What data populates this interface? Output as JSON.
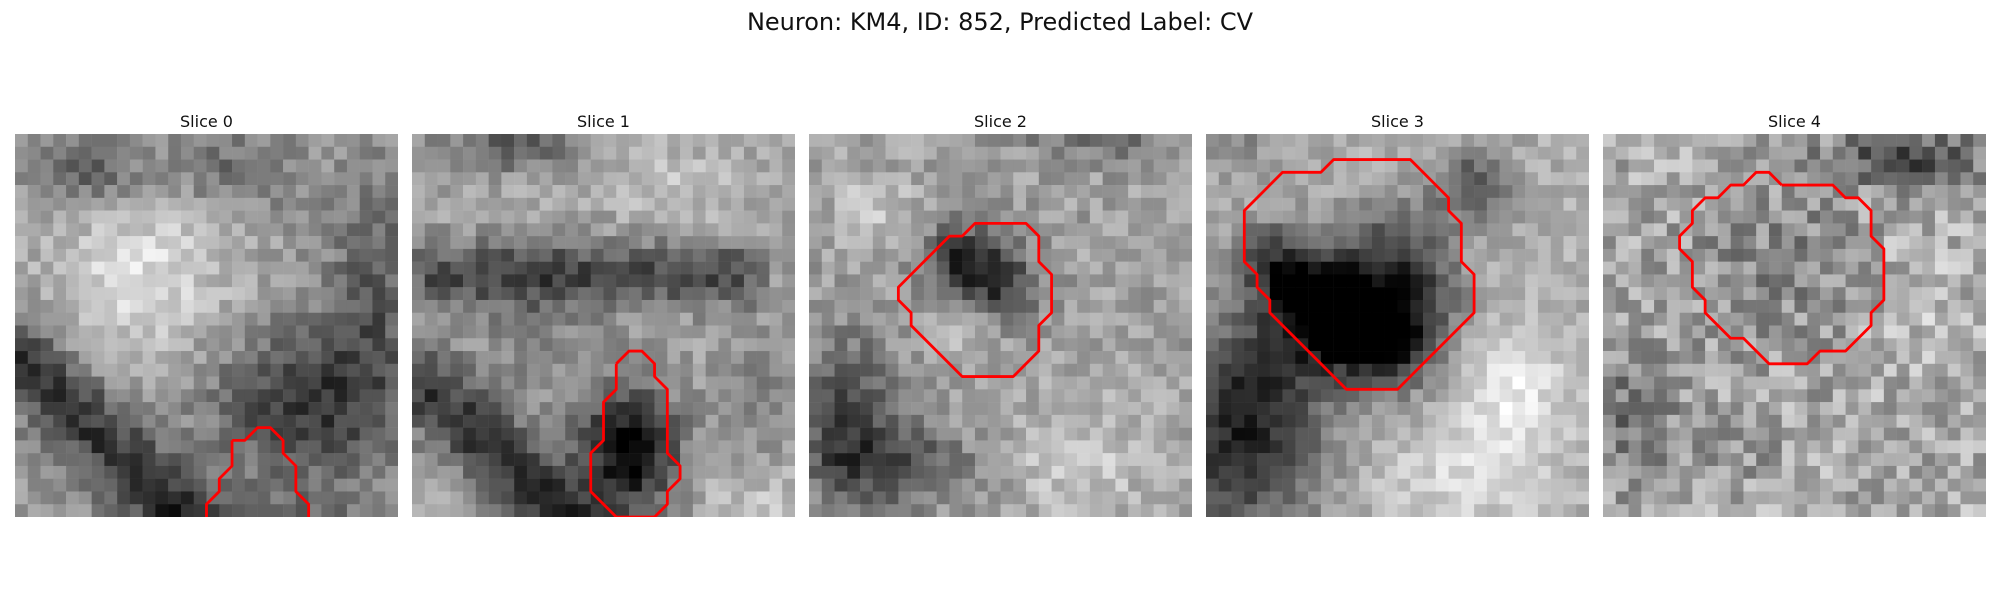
{
  "figure": {
    "title": "Neuron: KM4, ID: 852, Predicted Label: CV"
  },
  "panels": [
    {
      "title": "Slice 0",
      "contour": [
        [
          17,
          24
        ],
        [
          18,
          24
        ],
        [
          19,
          23
        ],
        [
          20,
          23
        ],
        [
          21,
          24
        ],
        [
          21,
          25
        ],
        [
          22,
          26
        ],
        [
          22,
          28
        ],
        [
          23,
          29
        ],
        [
          23,
          33
        ],
        [
          22,
          34
        ],
        [
          21,
          35
        ],
        [
          18,
          35
        ],
        [
          17,
          34
        ],
        [
          16,
          34
        ],
        [
          15,
          33
        ],
        [
          15,
          29
        ],
        [
          16,
          28
        ],
        [
          16,
          27
        ],
        [
          17,
          26
        ],
        [
          17,
          24
        ]
      ]
    },
    {
      "title": "Slice 1",
      "contour": [
        [
          16,
          18
        ],
        [
          17,
          17
        ],
        [
          18,
          17
        ],
        [
          19,
          18
        ],
        [
          19,
          19
        ],
        [
          20,
          20
        ],
        [
          20,
          25
        ],
        [
          21,
          26
        ],
        [
          21,
          27
        ],
        [
          20,
          28
        ],
        [
          20,
          29
        ],
        [
          19,
          30
        ],
        [
          16,
          30
        ],
        [
          15,
          29
        ],
        [
          14,
          28
        ],
        [
          14,
          25
        ],
        [
          15,
          24
        ],
        [
          15,
          21
        ],
        [
          16,
          20
        ],
        [
          16,
          18
        ]
      ]
    },
    {
      "title": "Slice 2",
      "contour": [
        [
          14,
          7
        ],
        [
          17,
          7
        ],
        [
          18,
          8
        ],
        [
          18,
          10
        ],
        [
          19,
          11
        ],
        [
          19,
          14
        ],
        [
          18,
          15
        ],
        [
          18,
          17
        ],
        [
          17,
          18
        ],
        [
          16,
          19
        ],
        [
          12,
          19
        ],
        [
          11,
          18
        ],
        [
          10,
          17
        ],
        [
          9,
          16
        ],
        [
          8,
          15
        ],
        [
          8,
          14
        ],
        [
          7,
          13
        ],
        [
          7,
          12
        ],
        [
          8,
          11
        ],
        [
          9,
          10
        ],
        [
          10,
          9
        ],
        [
          11,
          8
        ],
        [
          12,
          8
        ],
        [
          13,
          7
        ],
        [
          14,
          7
        ]
      ]
    },
    {
      "title": "Slice 3",
      "contour": [
        [
          11,
          2
        ],
        [
          16,
          2
        ],
        [
          17,
          3
        ],
        [
          18,
          4
        ],
        [
          19,
          5
        ],
        [
          19,
          6
        ],
        [
          20,
          7
        ],
        [
          20,
          10
        ],
        [
          21,
          11
        ],
        [
          21,
          14
        ],
        [
          20,
          15
        ],
        [
          19,
          16
        ],
        [
          18,
          17
        ],
        [
          17,
          18
        ],
        [
          16,
          19
        ],
        [
          15,
          20
        ],
        [
          11,
          20
        ],
        [
          10,
          19
        ],
        [
          9,
          18
        ],
        [
          8,
          17
        ],
        [
          7,
          16
        ],
        [
          6,
          15
        ],
        [
          5,
          14
        ],
        [
          5,
          13
        ],
        [
          4,
          12
        ],
        [
          4,
          11
        ],
        [
          3,
          10
        ],
        [
          3,
          6
        ],
        [
          4,
          5
        ],
        [
          5,
          4
        ],
        [
          6,
          3
        ],
        [
          9,
          3
        ],
        [
          10,
          2
        ],
        [
          11,
          2
        ]
      ]
    },
    {
      "title": "Slice 4",
      "contour": [
        [
          14,
          4
        ],
        [
          18,
          4
        ],
        [
          19,
          5
        ],
        [
          20,
          5
        ],
        [
          21,
          6
        ],
        [
          21,
          8
        ],
        [
          22,
          9
        ],
        [
          22,
          13
        ],
        [
          21,
          14
        ],
        [
          21,
          15
        ],
        [
          20,
          16
        ],
        [
          19,
          17
        ],
        [
          17,
          17
        ],
        [
          16,
          18
        ],
        [
          13,
          18
        ],
        [
          12,
          17
        ],
        [
          11,
          16
        ],
        [
          10,
          16
        ],
        [
          9,
          15
        ],
        [
          8,
          14
        ],
        [
          8,
          13
        ],
        [
          7,
          12
        ],
        [
          7,
          10
        ],
        [
          6,
          9
        ],
        [
          6,
          8
        ],
        [
          7,
          7
        ],
        [
          7,
          6
        ],
        [
          8,
          5
        ],
        [
          9,
          5
        ],
        [
          10,
          4
        ],
        [
          11,
          4
        ],
        [
          12,
          3
        ],
        [
          13,
          3
        ],
        [
          14,
          4
        ]
      ]
    }
  ]
}
